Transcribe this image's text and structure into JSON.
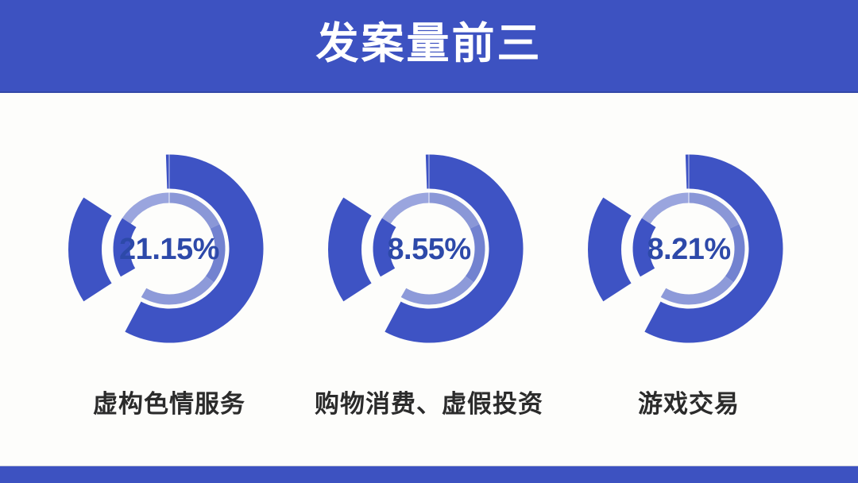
{
  "header": {
    "title": "发案量前三"
  },
  "charts": [
    {
      "percent": "21.15%",
      "value": 21.15,
      "label": "虚构色情服务"
    },
    {
      "percent": "8.55%",
      "value": 8.55,
      "label": "购物消费、虚假投资"
    },
    {
      "percent": "8.21%",
      "value": 8.21,
      "label": "游戏交易"
    }
  ],
  "chart_data": {
    "type": "pie",
    "title": "发案量前三",
    "series": [
      {
        "name": "虚构色情服务",
        "value": 21.15,
        "display": "21.15%"
      },
      {
        "name": "购物消费、虚假投资",
        "value": 8.55,
        "display": "8.55%"
      },
      {
        "name": "游戏交易",
        "value": 8.21,
        "display": "8.21%"
      }
    ],
    "layout": "three identical decorative exploded donut rings, percent in center, category label below each donut"
  },
  "colors": {
    "primary_blue": "#3D52C1",
    "donut_dark": "#3E53C4",
    "ring_light_topleft": "#9AA5DE",
    "ring_light_topright": "#8A97D7",
    "ring_mid_right": "#7282D0",
    "ring_light_bottom": "#8D9AD9",
    "percent_text": "#2D49A9",
    "label_text": "#2B2B2B",
    "background": "#FDFDFB"
  }
}
